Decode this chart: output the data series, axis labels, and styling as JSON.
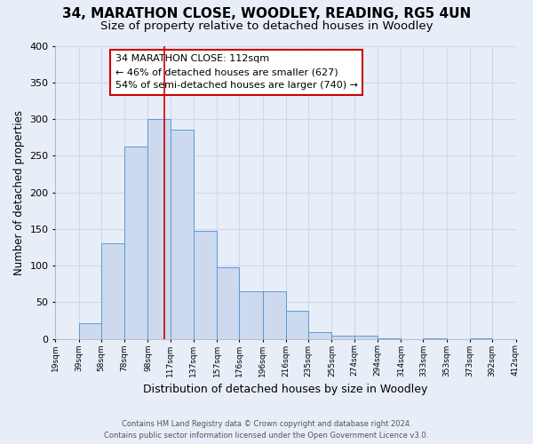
{
  "title": "34, MARATHON CLOSE, WOODLEY, READING, RG5 4UN",
  "subtitle": "Size of property relative to detached houses in Woodley",
  "xlabel": "Distribution of detached houses by size in Woodley",
  "ylabel": "Number of detached properties",
  "footer_line1": "Contains HM Land Registry data © Crown copyright and database right 2024.",
  "footer_line2": "Contains public sector information licensed under the Open Government Licence v3.0.",
  "bin_edges": [
    19,
    39,
    58,
    78,
    98,
    117,
    137,
    157,
    176,
    196,
    216,
    235,
    255,
    274,
    294,
    314,
    333,
    353,
    373,
    392,
    412
  ],
  "bin_counts": [
    0,
    22,
    130,
    263,
    300,
    285,
    147,
    98,
    65,
    65,
    38,
    9,
    5,
    4,
    1,
    0,
    1,
    0,
    1,
    0
  ],
  "bar_facecolor": "#ccd9ee",
  "bar_edgecolor": "#5b9bd5",
  "vline_x": 112,
  "vline_color": "#cc0000",
  "annotation_title": "34 MARATHON CLOSE: 112sqm",
  "annotation_line1": "← 46% of detached houses are smaller (627)",
  "annotation_line2": "54% of semi-detached houses are larger (740) →",
  "annotation_box_edgecolor": "#cc0000",
  "annotation_box_facecolor": "#ffffff",
  "ylim": [
    0,
    400
  ],
  "yticks": [
    0,
    50,
    100,
    150,
    200,
    250,
    300,
    350,
    400
  ],
  "background_color": "#e8eef8",
  "plot_background_color": "#e8eef8",
  "grid_color": "#d0d8e8",
  "title_fontsize": 11,
  "subtitle_fontsize": 9.5,
  "tick_labels": [
    "19sqm",
    "39sqm",
    "58sqm",
    "78sqm",
    "98sqm",
    "117sqm",
    "137sqm",
    "157sqm",
    "176sqm",
    "196sqm",
    "216sqm",
    "235sqm",
    "255sqm",
    "274sqm",
    "294sqm",
    "314sqm",
    "333sqm",
    "353sqm",
    "373sqm",
    "392sqm",
    "412sqm"
  ]
}
